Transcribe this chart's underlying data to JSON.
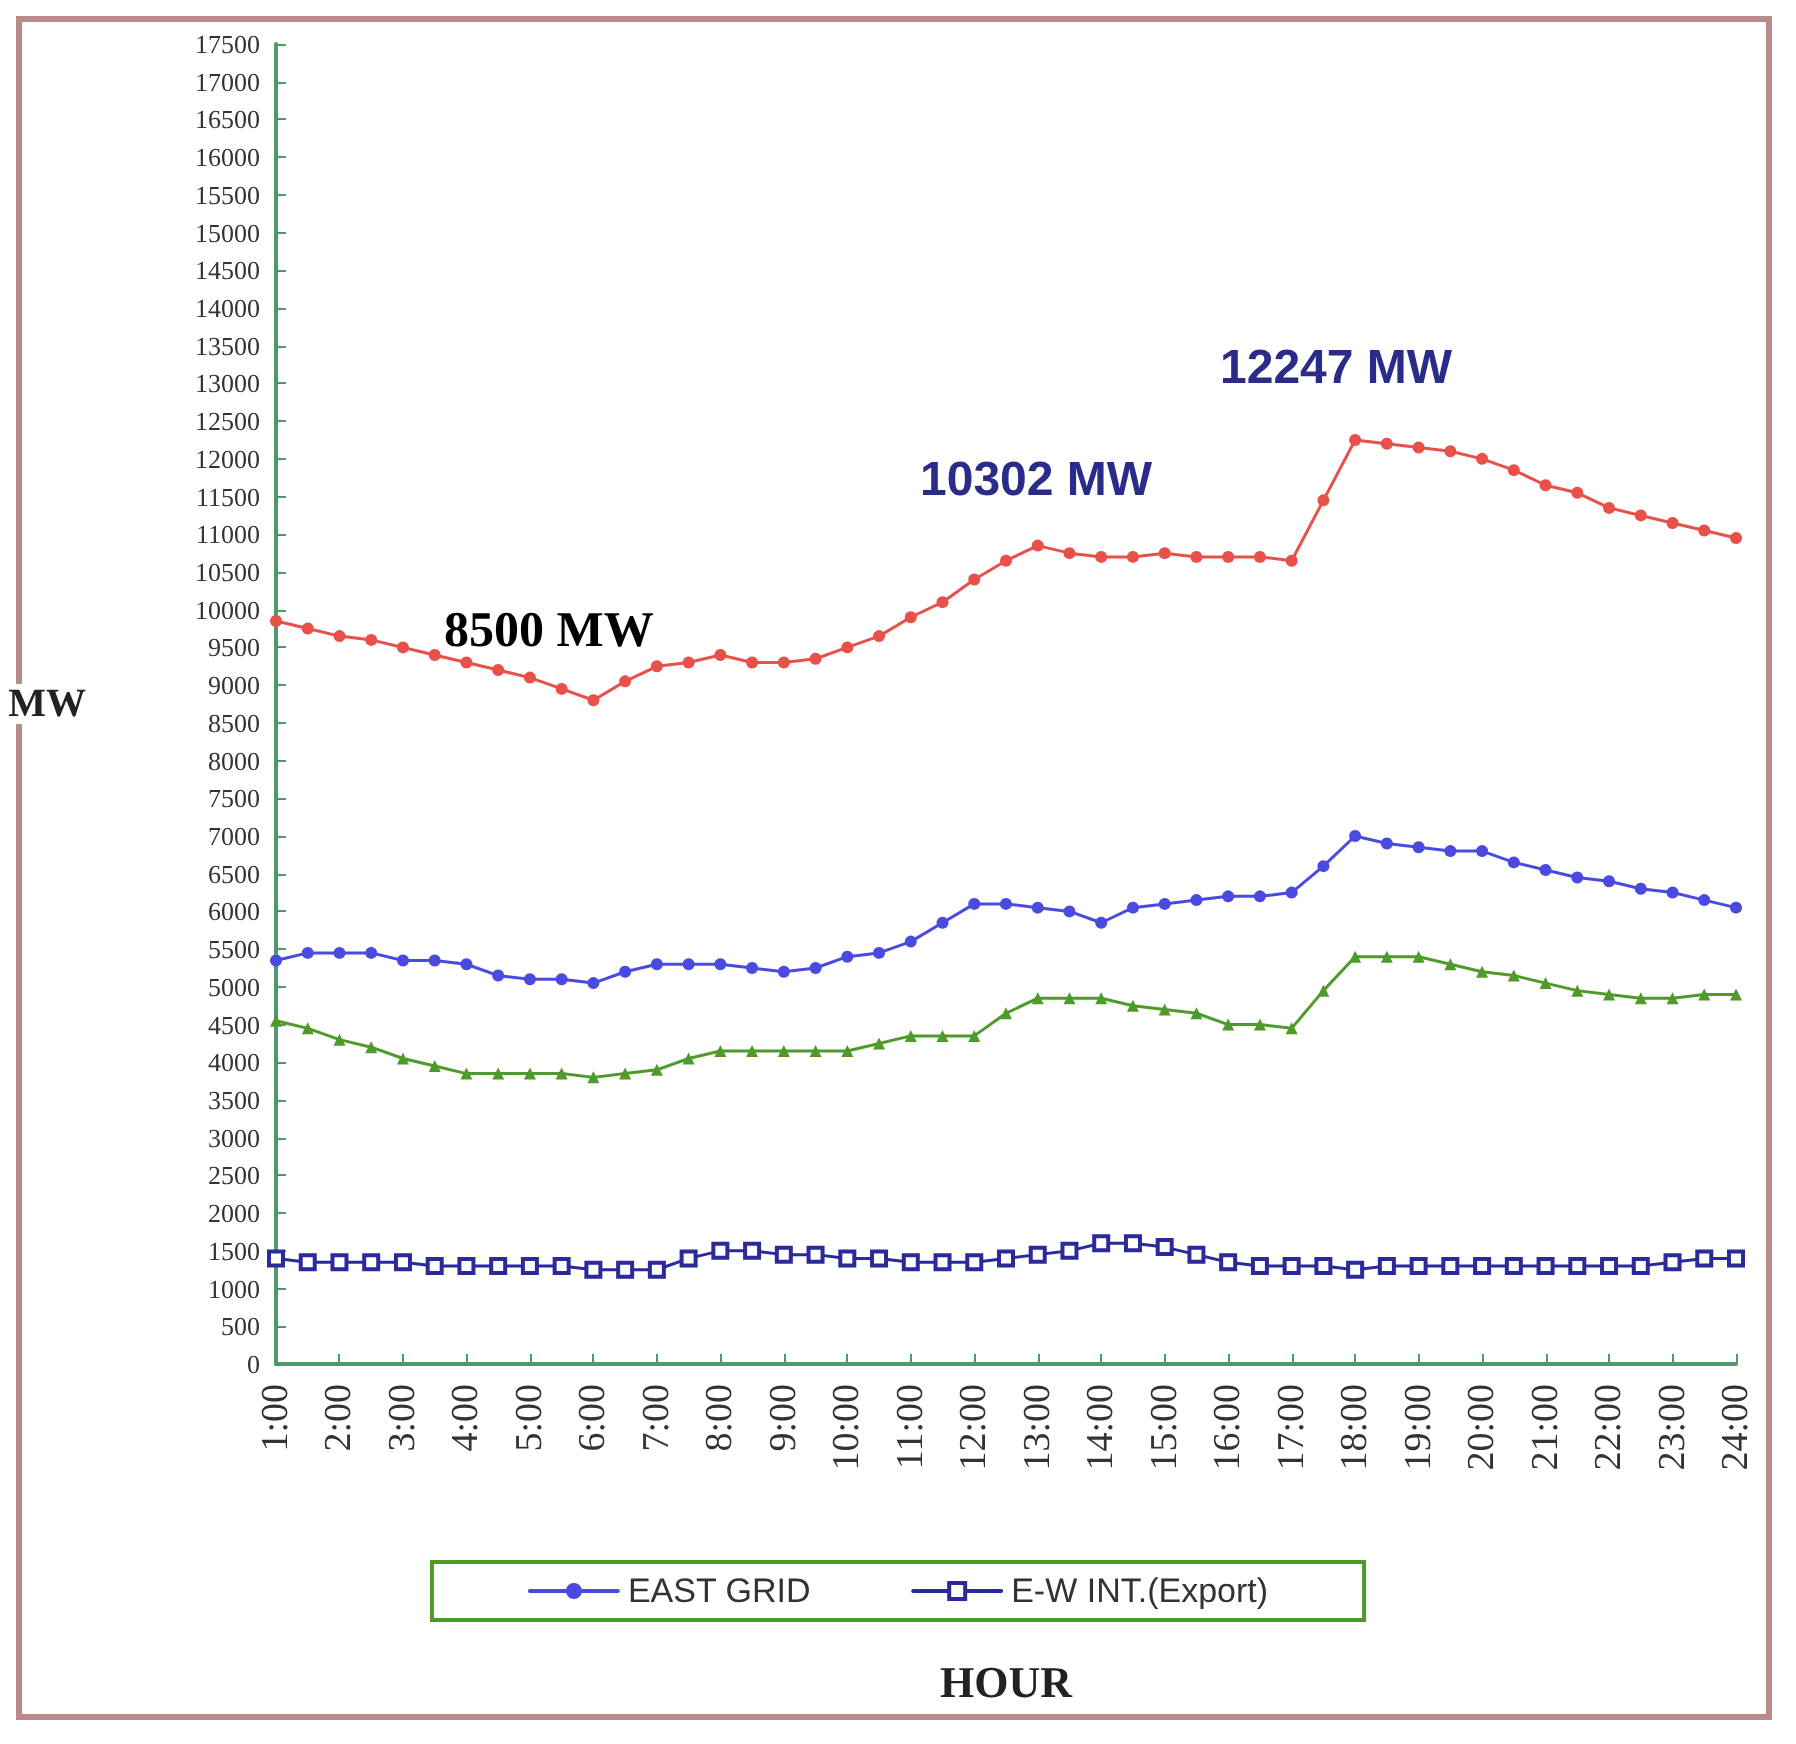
{
  "chart_data": {
    "type": "line",
    "xlabel": "HOUR",
    "ylabel": "MW",
    "annotations": [
      "8500 MW",
      "10302 MW",
      "12247 MW"
    ],
    "x": [
      1,
      1.5,
      2,
      2.5,
      3,
      3.5,
      4,
      4.5,
      5,
      5.5,
      6,
      6.5,
      7,
      7.5,
      8,
      8.5,
      9,
      9.5,
      10,
      10.5,
      11,
      11.5,
      12,
      12.5,
      13,
      13.5,
      14,
      14.5,
      15,
      15.5,
      16,
      16.5,
      17,
      17.5,
      18,
      18.5,
      19,
      19.5,
      20,
      20.5,
      21,
      21.5,
      22,
      22.5,
      23,
      23.5,
      24
    ],
    "xlim": [
      1,
      24
    ],
    "xticks": [
      {
        "value": 1,
        "label": "1:00"
      },
      {
        "value": 2,
        "label": "2:00"
      },
      {
        "value": 3,
        "label": "3:00"
      },
      {
        "value": 4,
        "label": "4:00"
      },
      {
        "value": 5,
        "label": "5:00"
      },
      {
        "value": 6,
        "label": "6:00"
      },
      {
        "value": 7,
        "label": "7:00"
      },
      {
        "value": 8,
        "label": "8:00"
      },
      {
        "value": 9,
        "label": "9:00"
      },
      {
        "value": 10,
        "label": "10:00"
      },
      {
        "value": 11,
        "label": "11:00"
      },
      {
        "value": 12,
        "label": "12:00"
      },
      {
        "value": 13,
        "label": "13:00"
      },
      {
        "value": 14,
        "label": "14:00"
      },
      {
        "value": 15,
        "label": "15:00"
      },
      {
        "value": 16,
        "label": "16:00"
      },
      {
        "value": 17,
        "label": "17:00"
      },
      {
        "value": 18,
        "label": "18:00"
      },
      {
        "value": 19,
        "label": "19:00"
      },
      {
        "value": 20,
        "label": "20:00"
      },
      {
        "value": 21,
        "label": "21:00"
      },
      {
        "value": 22,
        "label": "22:00"
      },
      {
        "value": 23,
        "label": "23:00"
      },
      {
        "value": 24,
        "label": "24:00"
      }
    ],
    "ylim": [
      0,
      17500
    ],
    "yticks": [
      0,
      500,
      1000,
      1500,
      2000,
      2500,
      3000,
      3500,
      4000,
      4500,
      5000,
      5500,
      6000,
      6500,
      7000,
      7500,
      8000,
      8500,
      9000,
      9500,
      10000,
      10500,
      11000,
      11500,
      12000,
      12500,
      13000,
      13500,
      14000,
      14500,
      15000,
      15500,
      16000,
      16500,
      17000,
      17500
    ],
    "grid": false,
    "legend": "bottom",
    "line_style": "solid",
    "series": [
      {
        "color": "#e8504a",
        "marker": "circle",
        "values": [
          9850,
          9750,
          9650,
          9600,
          9500,
          9400,
          9300,
          9200,
          9100,
          8950,
          8800,
          9050,
          9250,
          9300,
          9400,
          9300,
          9300,
          9350,
          9500,
          9650,
          9900,
          10100,
          10400,
          10650,
          10850,
          10750,
          10700,
          10700,
          10750,
          10700,
          10700,
          10700,
          10650,
          11450,
          12250,
          12200,
          12150,
          12100,
          12000,
          11850,
          11650,
          11550,
          11350,
          11250,
          11150,
          11050,
          10950
        ]
      },
      {
        "name": "EAST GRID",
        "color": "#4a4ae0",
        "marker": "circle",
        "values": [
          5350,
          5450,
          5450,
          5450,
          5350,
          5350,
          5300,
          5150,
          5100,
          5100,
          5050,
          5200,
          5300,
          5300,
          5300,
          5250,
          5200,
          5250,
          5400,
          5450,
          5600,
          5850,
          6100,
          6100,
          6050,
          6000,
          5850,
          6050,
          6100,
          6150,
          6200,
          6200,
          6250,
          6600,
          7000,
          6900,
          6850,
          6800,
          6800,
          6650,
          6550,
          6450,
          6400,
          6300,
          6250,
          6150,
          6050
        ]
      },
      {
        "color": "#4e9a2a",
        "marker": "triangle",
        "values": [
          4550,
          4450,
          4300,
          4200,
          4050,
          3950,
          3850,
          3850,
          3850,
          3850,
          3800,
          3850,
          3900,
          4050,
          4150,
          4150,
          4150,
          4150,
          4150,
          4250,
          4350,
          4350,
          4350,
          4650,
          4850,
          4850,
          4850,
          4750,
          4700,
          4650,
          4500,
          4500,
          4450,
          4950,
          5400,
          5400,
          5400,
          5300,
          5200,
          5150,
          5050,
          4950,
          4900,
          4850,
          4850,
          4900,
          4900
        ]
      },
      {
        "name": "E-W INT.(Export)",
        "color": "#2a2a9a",
        "marker": "square",
        "values": [
          1400,
          1350,
          1350,
          1350,
          1350,
          1300,
          1300,
          1300,
          1300,
          1300,
          1250,
          1250,
          1250,
          1400,
          1500,
          1500,
          1450,
          1450,
          1400,
          1400,
          1350,
          1350,
          1350,
          1400,
          1450,
          1500,
          1600,
          1600,
          1550,
          1450,
          1350,
          1300,
          1300,
          1300,
          1250,
          1300,
          1300,
          1300,
          1300,
          1300,
          1300,
          1300,
          1300,
          1300,
          1350,
          1400,
          1400
        ]
      }
    ]
  }
}
